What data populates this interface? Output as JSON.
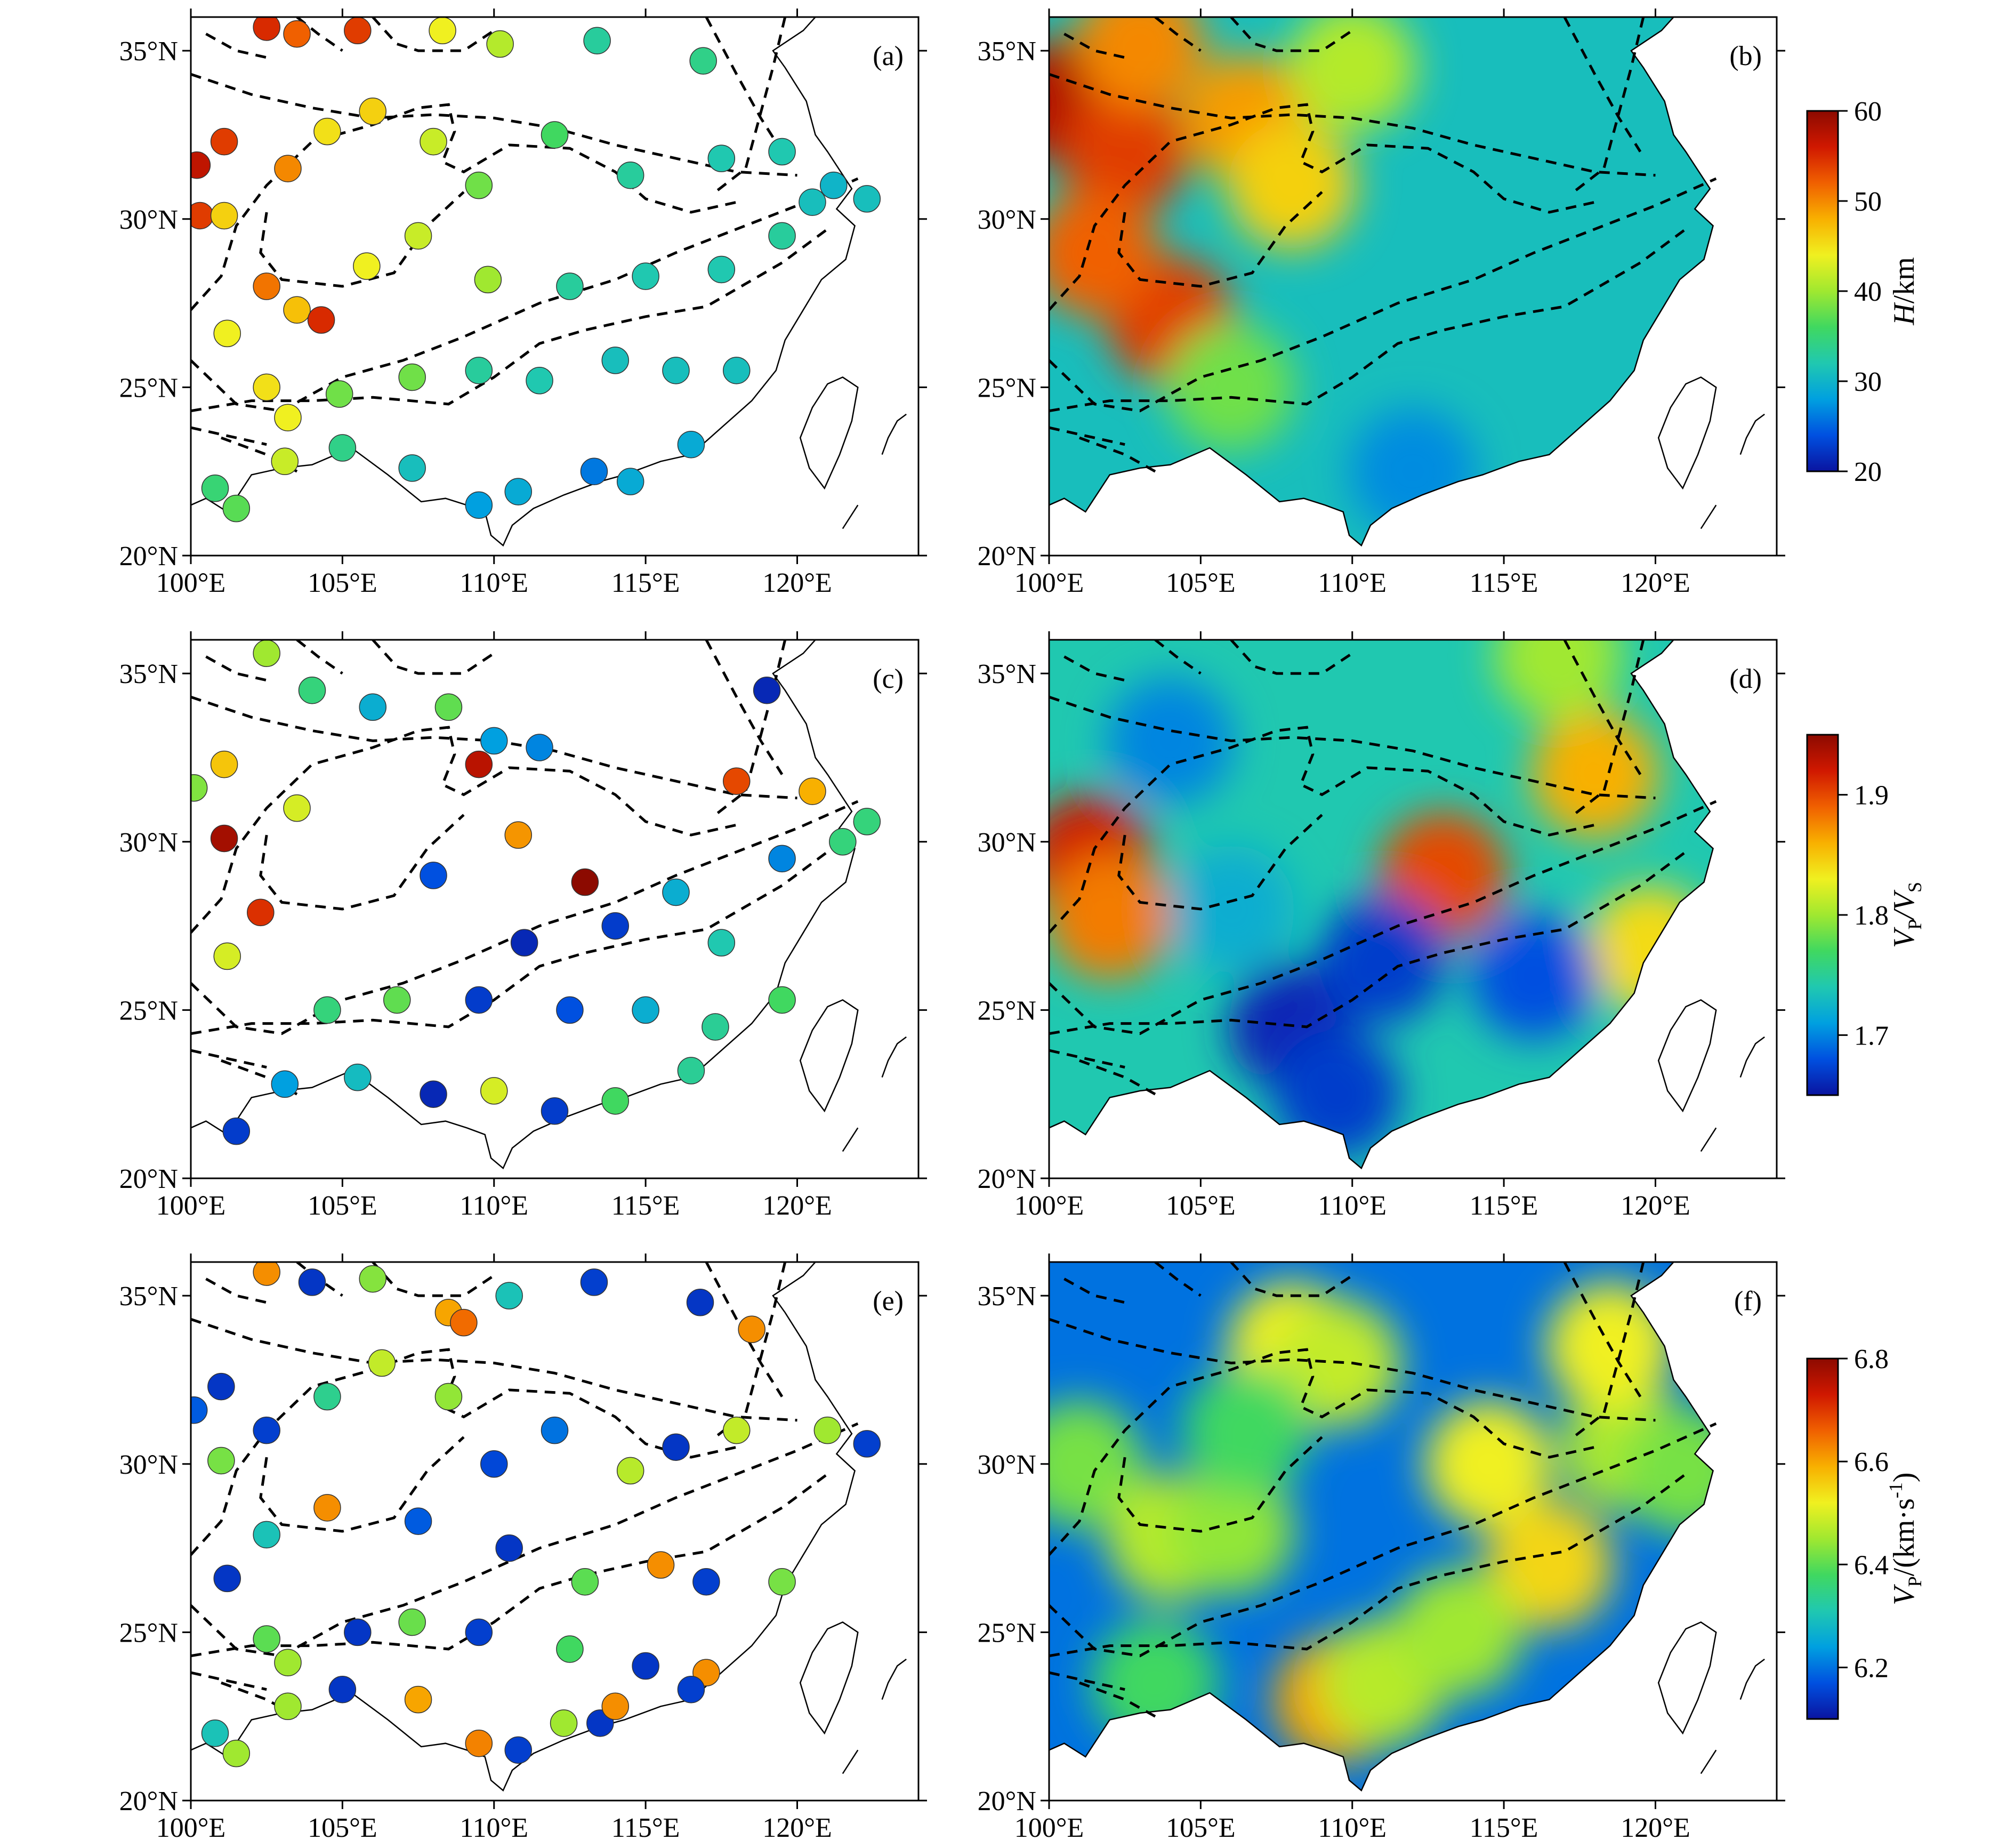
{
  "figure": {
    "lon_ticks": [
      "100°E",
      "105°E",
      "110°E",
      "115°E",
      "120°E"
    ],
    "lat_ticks": [
      "20°N",
      "25°N",
      "30°N",
      "35°N"
    ],
    "lon_values": [
      100,
      105,
      110,
      115,
      120
    ],
    "lat_values": [
      20,
      25,
      30,
      35
    ],
    "extent": {
      "lon_min": 100,
      "lon_max": 124,
      "lat_min": 20,
      "lat_max": 36
    }
  },
  "panels": [
    {
      "label": "(a)",
      "kind": "stations",
      "variable": "H"
    },
    {
      "label": "(b)",
      "kind": "grid",
      "variable": "H"
    },
    {
      "label": "(c)",
      "kind": "stations",
      "variable": "VpVs"
    },
    {
      "label": "(d)",
      "kind": "grid",
      "variable": "VpVs"
    },
    {
      "label": "(e)",
      "kind": "stations",
      "variable": "Vp"
    },
    {
      "label": "(f)",
      "kind": "grid",
      "variable": "Vp"
    }
  ],
  "colorbars": [
    {
      "label_main": "H",
      "label_rest": "/km",
      "ticks": [
        "20",
        "30",
        "40",
        "50",
        "60"
      ],
      "tick_values": [
        20,
        30,
        40,
        50,
        60
      ],
      "min": 20,
      "max": 60
    },
    {
      "label_main": "V",
      "label_sub1": "P",
      "label_slash": "/V",
      "label_sub2": "S",
      "ticks": [
        "1.7",
        "1.8",
        "1.9"
      ],
      "tick_values": [
        1.7,
        1.8,
        1.9
      ],
      "min": 1.65,
      "max": 1.95
    },
    {
      "label_main": "V",
      "label_sub1": "P",
      "label_rest": "/(km·s",
      "label_sup": "-1",
      "label_end": ")",
      "ticks": [
        "6.2",
        "6.4",
        "6.6",
        "6.8"
      ],
      "tick_values": [
        6.2,
        6.4,
        6.6,
        6.8
      ],
      "min": 6.1,
      "max": 6.8
    }
  ],
  "colors": {
    "jet": [
      "#0a14a0",
      "#0050e0",
      "#00a0e0",
      "#20c8b0",
      "#40d860",
      "#a0e830",
      "#f0f020",
      "#f8b000",
      "#f06000",
      "#d01800",
      "#8c0a00"
    ],
    "coast": "#000000",
    "boundary": "#000000"
  },
  "chart_data": [
    {
      "type": "scatter",
      "panel": "(a)",
      "value_name": "H (km)",
      "points": [
        {
          "lon": 102.5,
          "lat": 35.7,
          "v": 55
        },
        {
          "lon": 103.5,
          "lat": 35.5,
          "v": 52
        },
        {
          "lon": 105.5,
          "lat": 35.6,
          "v": 54
        },
        {
          "lon": 108.3,
          "lat": 35.6,
          "v": 44
        },
        {
          "lon": 110.2,
          "lat": 35.2,
          "v": 41
        },
        {
          "lon": 113.4,
          "lat": 35.3,
          "v": 33
        },
        {
          "lon": 116.9,
          "lat": 34.7,
          "v": 34
        },
        {
          "lon": 101.1,
          "lat": 32.3,
          "v": 54
        },
        {
          "lon": 100.2,
          "lat": 31.6,
          "v": 57
        },
        {
          "lon": 100.3,
          "lat": 30.1,
          "v": 54
        },
        {
          "lon": 101.1,
          "lat": 30.1,
          "v": 46
        },
        {
          "lon": 103.2,
          "lat": 31.5,
          "v": 50
        },
        {
          "lon": 104.5,
          "lat": 32.6,
          "v": 45
        },
        {
          "lon": 106.0,
          "lat": 33.2,
          "v": 46
        },
        {
          "lon": 108.0,
          "lat": 32.3,
          "v": 42
        },
        {
          "lon": 109.5,
          "lat": 31.0,
          "v": 38
        },
        {
          "lon": 112.0,
          "lat": 32.5,
          "v": 36
        },
        {
          "lon": 114.5,
          "lat": 31.3,
          "v": 33
        },
        {
          "lon": 117.5,
          "lat": 31.8,
          "v": 32
        },
        {
          "lon": 119.5,
          "lat": 32.0,
          "v": 32
        },
        {
          "lon": 121.2,
          "lat": 31.0,
          "v": 30
        },
        {
          "lon": 102.5,
          "lat": 28.0,
          "v": 51
        },
        {
          "lon": 103.5,
          "lat": 27.3,
          "v": 47
        },
        {
          "lon": 104.3,
          "lat": 27.0,
          "v": 55
        },
        {
          "lon": 105.8,
          "lat": 28.6,
          "v": 44
        },
        {
          "lon": 107.5,
          "lat": 29.5,
          "v": 42
        },
        {
          "lon": 109.8,
          "lat": 28.2,
          "v": 40
        },
        {
          "lon": 112.5,
          "lat": 28.0,
          "v": 33
        },
        {
          "lon": 115.0,
          "lat": 28.3,
          "v": 32
        },
        {
          "lon": 117.5,
          "lat": 28.5,
          "v": 32
        },
        {
          "lon": 119.5,
          "lat": 29.5,
          "v": 33
        },
        {
          "lon": 101.2,
          "lat": 26.6,
          "v": 44
        },
        {
          "lon": 102.5,
          "lat": 25.0,
          "v": 45
        },
        {
          "lon": 103.2,
          "lat": 24.1,
          "v": 44
        },
        {
          "lon": 104.9,
          "lat": 24.8,
          "v": 38
        },
        {
          "lon": 107.3,
          "lat": 25.3,
          "v": 38
        },
        {
          "lon": 109.5,
          "lat": 25.5,
          "v": 33
        },
        {
          "lon": 111.5,
          "lat": 25.2,
          "v": 32
        },
        {
          "lon": 114.0,
          "lat": 25.8,
          "v": 31
        },
        {
          "lon": 116.0,
          "lat": 25.5,
          "v": 31
        },
        {
          "lon": 118.0,
          "lat": 25.5,
          "v": 31
        },
        {
          "lon": 100.8,
          "lat": 22.0,
          "v": 35
        },
        {
          "lon": 101.5,
          "lat": 21.4,
          "v": 37
        },
        {
          "lon": 103.1,
          "lat": 22.8,
          "v": 42
        },
        {
          "lon": 105.0,
          "lat": 23.2,
          "v": 34
        },
        {
          "lon": 107.3,
          "lat": 22.6,
          "v": 31
        },
        {
          "lon": 109.5,
          "lat": 21.5,
          "v": 28
        },
        {
          "lon": 110.8,
          "lat": 21.9,
          "v": 29
        },
        {
          "lon": 113.3,
          "lat": 22.5,
          "v": 26
        },
        {
          "lon": 114.5,
          "lat": 22.2,
          "v": 29
        },
        {
          "lon": 116.5,
          "lat": 23.3,
          "v": 29
        },
        {
          "lon": 120.5,
          "lat": 30.5,
          "v": 31
        },
        {
          "lon": 122.3,
          "lat": 30.6,
          "v": 31
        }
      ]
    },
    {
      "type": "heatmap",
      "panel": "(b)",
      "value_name": "H (km)",
      "anomalies": [
        {
          "lon": 100.5,
          "lat": 33.5,
          "v": 58
        },
        {
          "lon": 102.5,
          "lat": 32.0,
          "v": 54
        },
        {
          "lon": 104.0,
          "lat": 27.0,
          "v": 54
        },
        {
          "lon": 106.5,
          "lat": 33.0,
          "v": 49
        },
        {
          "lon": 108.0,
          "lat": 31.0,
          "v": 46
        },
        {
          "lon": 101.5,
          "lat": 29.0,
          "v": 52
        },
        {
          "lon": 103.0,
          "lat": 35.2,
          "v": 50
        },
        {
          "lon": 110.0,
          "lat": 34.5,
          "v": 41
        },
        {
          "lon": 106.0,
          "lat": 25.0,
          "v": 38
        },
        {
          "lon": 112.0,
          "lat": 22.5,
          "v": 27
        }
      ]
    },
    {
      "type": "scatter",
      "panel": "(c)",
      "value_name": "Vp/Vs",
      "points": [
        {
          "lon": 102.5,
          "lat": 35.6,
          "v": 1.8
        },
        {
          "lon": 104.0,
          "lat": 34.5,
          "v": 1.76
        },
        {
          "lon": 106.0,
          "lat": 34.0,
          "v": 1.72
        },
        {
          "lon": 108.5,
          "lat": 34.0,
          "v": 1.78
        },
        {
          "lon": 110.0,
          "lat": 33.0,
          "v": 1.71
        },
        {
          "lon": 111.5,
          "lat": 32.8,
          "v": 1.7
        },
        {
          "lon": 101.1,
          "lat": 32.3,
          "v": 1.85
        },
        {
          "lon": 100.1,
          "lat": 31.6,
          "v": 1.79
        },
        {
          "lon": 101.1,
          "lat": 30.1,
          "v": 1.94
        },
        {
          "lon": 103.5,
          "lat": 31.0,
          "v": 1.82
        },
        {
          "lon": 109.5,
          "lat": 32.3,
          "v": 1.93
        },
        {
          "lon": 110.8,
          "lat": 30.2,
          "v": 1.87
        },
        {
          "lon": 113.0,
          "lat": 28.8,
          "v": 1.95
        },
        {
          "lon": 118.0,
          "lat": 31.8,
          "v": 1.9
        },
        {
          "lon": 119.0,
          "lat": 34.5,
          "v": 1.66
        },
        {
          "lon": 120.5,
          "lat": 31.5,
          "v": 1.86
        },
        {
          "lon": 102.3,
          "lat": 27.9,
          "v": 1.91
        },
        {
          "lon": 101.2,
          "lat": 26.6,
          "v": 1.82
        },
        {
          "lon": 108.0,
          "lat": 29.0,
          "v": 1.68
        },
        {
          "lon": 111.0,
          "lat": 27.0,
          "v": 1.66
        },
        {
          "lon": 114.0,
          "lat": 27.5,
          "v": 1.67
        },
        {
          "lon": 116.0,
          "lat": 28.5,
          "v": 1.72
        },
        {
          "lon": 117.5,
          "lat": 27.0,
          "v": 1.74
        },
        {
          "lon": 119.5,
          "lat": 29.5,
          "v": 1.7
        },
        {
          "lon": 121.5,
          "lat": 30.0,
          "v": 1.76
        },
        {
          "lon": 104.5,
          "lat": 25.0,
          "v": 1.76
        },
        {
          "lon": 106.8,
          "lat": 25.3,
          "v": 1.78
        },
        {
          "lon": 109.5,
          "lat": 25.3,
          "v": 1.67
        },
        {
          "lon": 112.5,
          "lat": 25.0,
          "v": 1.68
        },
        {
          "lon": 115.0,
          "lat": 25.0,
          "v": 1.72
        },
        {
          "lon": 117.3,
          "lat": 24.5,
          "v": 1.75
        },
        {
          "lon": 119.5,
          "lat": 25.3,
          "v": 1.77
        },
        {
          "lon": 101.5,
          "lat": 21.4,
          "v": 1.67
        },
        {
          "lon": 103.1,
          "lat": 22.8,
          "v": 1.71
        },
        {
          "lon": 105.5,
          "lat": 23.0,
          "v": 1.73
        },
        {
          "lon": 108.0,
          "lat": 22.5,
          "v": 1.66
        },
        {
          "lon": 110.0,
          "lat": 22.6,
          "v": 1.82
        },
        {
          "lon": 112.0,
          "lat": 22.0,
          "v": 1.67
        },
        {
          "lon": 114.0,
          "lat": 22.3,
          "v": 1.77
        },
        {
          "lon": 116.5,
          "lat": 23.2,
          "v": 1.75
        },
        {
          "lon": 122.3,
          "lat": 30.6,
          "v": 1.76
        }
      ]
    },
    {
      "type": "heatmap",
      "panel": "(d)",
      "value_name": "Vp/Vs",
      "anomalies": [
        {
          "lon": 101.3,
          "lat": 29.5,
          "v": 1.92
        },
        {
          "lon": 102.0,
          "lat": 27.8,
          "v": 1.88
        },
        {
          "lon": 113.0,
          "lat": 29.0,
          "v": 1.9
        },
        {
          "lon": 118.0,
          "lat": 32.0,
          "v": 1.86
        },
        {
          "lon": 119.8,
          "lat": 26.8,
          "v": 1.84
        },
        {
          "lon": 116.8,
          "lat": 35.5,
          "v": 1.8
        },
        {
          "lon": 108.0,
          "lat": 24.5,
          "v": 1.66
        },
        {
          "lon": 111.0,
          "lat": 26.5,
          "v": 1.67
        },
        {
          "lon": 116.0,
          "lat": 26.0,
          "v": 1.68
        },
        {
          "lon": 104.0,
          "lat": 33.0,
          "v": 1.7
        },
        {
          "lon": 109.5,
          "lat": 22.5,
          "v": 1.67
        },
        {
          "lon": 106.0,
          "lat": 28.0,
          "v": 1.72
        }
      ]
    },
    {
      "type": "scatter",
      "panel": "(e)",
      "value_name": "Vp (km/s)",
      "points": [
        {
          "lon": 102.5,
          "lat": 35.7,
          "v": 6.62
        },
        {
          "lon": 104.0,
          "lat": 35.4,
          "v": 6.14
        },
        {
          "lon": 106.0,
          "lat": 35.5,
          "v": 6.43
        },
        {
          "lon": 108.5,
          "lat": 34.5,
          "v": 6.6
        },
        {
          "lon": 109.0,
          "lat": 34.2,
          "v": 6.65
        },
        {
          "lon": 110.5,
          "lat": 35.0,
          "v": 6.3
        },
        {
          "lon": 113.3,
          "lat": 35.4,
          "v": 6.15
        },
        {
          "lon": 116.8,
          "lat": 34.8,
          "v": 6.14
        },
        {
          "lon": 118.5,
          "lat": 34.0,
          "v": 6.62
        },
        {
          "lon": 100.1,
          "lat": 31.6,
          "v": 6.18
        },
        {
          "lon": 101.0,
          "lat": 32.3,
          "v": 6.14
        },
        {
          "lon": 102.5,
          "lat": 31.0,
          "v": 6.15
        },
        {
          "lon": 104.5,
          "lat": 32.0,
          "v": 6.34
        },
        {
          "lon": 106.3,
          "lat": 33.0,
          "v": 6.48
        },
        {
          "lon": 108.5,
          "lat": 32.0,
          "v": 6.44
        },
        {
          "lon": 110.0,
          "lat": 30.0,
          "v": 6.16
        },
        {
          "lon": 112.0,
          "lat": 31.0,
          "v": 6.2
        },
        {
          "lon": 114.5,
          "lat": 29.8,
          "v": 6.47
        },
        {
          "lon": 116.0,
          "lat": 30.5,
          "v": 6.14
        },
        {
          "lon": 118.0,
          "lat": 31.0,
          "v": 6.48
        },
        {
          "lon": 121.0,
          "lat": 31.0,
          "v": 6.45
        },
        {
          "lon": 122.3,
          "lat": 30.6,
          "v": 6.15
        },
        {
          "lon": 101.0,
          "lat": 30.1,
          "v": 6.42
        },
        {
          "lon": 102.5,
          "lat": 27.9,
          "v": 6.3
        },
        {
          "lon": 104.5,
          "lat": 28.7,
          "v": 6.62
        },
        {
          "lon": 107.5,
          "lat": 28.3,
          "v": 6.18
        },
        {
          "lon": 110.5,
          "lat": 27.5,
          "v": 6.14
        },
        {
          "lon": 113.0,
          "lat": 26.5,
          "v": 6.4
        },
        {
          "lon": 115.5,
          "lat": 27.0,
          "v": 6.62
        },
        {
          "lon": 117.0,
          "lat": 26.5,
          "v": 6.15
        },
        {
          "lon": 119.5,
          "lat": 26.5,
          "v": 6.42
        },
        {
          "lon": 101.2,
          "lat": 26.6,
          "v": 6.14
        },
        {
          "lon": 102.5,
          "lat": 24.8,
          "v": 6.4
        },
        {
          "lon": 103.2,
          "lat": 24.1,
          "v": 6.45
        },
        {
          "lon": 105.5,
          "lat": 25.0,
          "v": 6.14
        },
        {
          "lon": 107.3,
          "lat": 25.3,
          "v": 6.41
        },
        {
          "lon": 109.5,
          "lat": 25.0,
          "v": 6.15
        },
        {
          "lon": 112.5,
          "lat": 24.5,
          "v": 6.38
        },
        {
          "lon": 115.0,
          "lat": 24.0,
          "v": 6.14
        },
        {
          "lon": 117.0,
          "lat": 23.8,
          "v": 6.62
        },
        {
          "lon": 100.8,
          "lat": 22.0,
          "v": 6.3
        },
        {
          "lon": 101.5,
          "lat": 21.4,
          "v": 6.45
        },
        {
          "lon": 103.2,
          "lat": 22.8,
          "v": 6.45
        },
        {
          "lon": 105.0,
          "lat": 23.3,
          "v": 6.14
        },
        {
          "lon": 107.5,
          "lat": 23.0,
          "v": 6.6
        },
        {
          "lon": 109.5,
          "lat": 21.7,
          "v": 6.63
        },
        {
          "lon": 110.8,
          "lat": 21.5,
          "v": 6.15
        },
        {
          "lon": 112.3,
          "lat": 22.3,
          "v": 6.45
        },
        {
          "lon": 113.5,
          "lat": 22.3,
          "v": 6.14
        },
        {
          "lon": 114.0,
          "lat": 22.8,
          "v": 6.62
        },
        {
          "lon": 116.5,
          "lat": 23.3,
          "v": 6.15
        }
      ]
    },
    {
      "type": "heatmap",
      "panel": "(f)",
      "value_name": "Vp (km/s)",
      "anomalies": [
        {
          "lon": 101.0,
          "lat": 30.0,
          "v": 6.42
        },
        {
          "lon": 104.0,
          "lat": 27.8,
          "v": 6.47
        },
        {
          "lon": 106.0,
          "lat": 28.0,
          "v": 6.44
        },
        {
          "lon": 108.0,
          "lat": 33.5,
          "v": 6.52
        },
        {
          "lon": 109.5,
          "lat": 33.0,
          "v": 6.48
        },
        {
          "lon": 114.5,
          "lat": 30.0,
          "v": 6.52
        },
        {
          "lon": 116.5,
          "lat": 27.0,
          "v": 6.55
        },
        {
          "lon": 119.0,
          "lat": 30.5,
          "v": 6.46
        },
        {
          "lon": 118.5,
          "lat": 33.5,
          "v": 6.52
        },
        {
          "lon": 109.5,
          "lat": 23.0,
          "v": 6.6
        },
        {
          "lon": 111.0,
          "lat": 23.5,
          "v": 6.47
        },
        {
          "lon": 113.5,
          "lat": 25.0,
          "v": 6.45
        },
        {
          "lon": 103.5,
          "lat": 23.5,
          "v": 6.38
        },
        {
          "lon": 121.0,
          "lat": 29.8,
          "v": 6.42
        },
        {
          "lon": 106.5,
          "lat": 31.0,
          "v": 6.38
        }
      ]
    }
  ]
}
